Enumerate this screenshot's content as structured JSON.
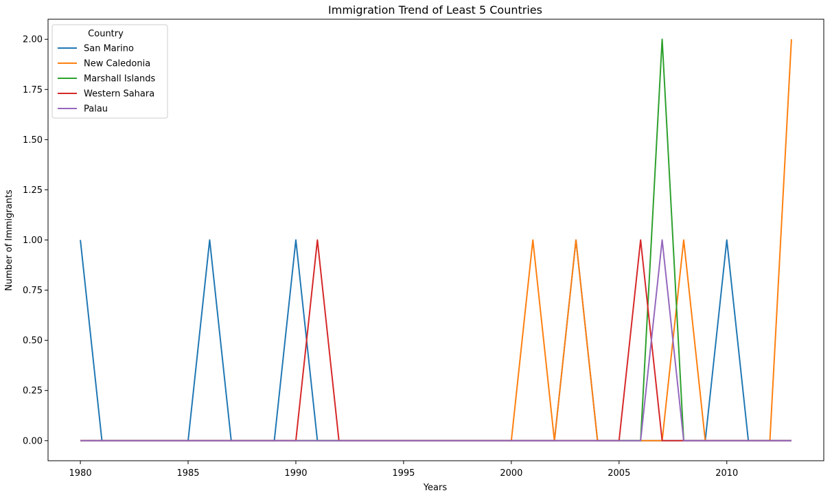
{
  "chart_data": {
    "type": "line",
    "title": "Immigration Trend of Least 5 Countries",
    "xlabel": "Years",
    "ylabel": "Number of Immigrants",
    "xlim": [
      1978.5,
      2014.5
    ],
    "ylim": [
      -0.1,
      2.1
    ],
    "xticks": [
      1980,
      1985,
      1990,
      1995,
      2000,
      2005,
      2010
    ],
    "yticks": [
      0.0,
      0.25,
      0.5,
      0.75,
      1.0,
      1.25,
      1.5,
      1.75,
      2.0
    ],
    "ytick_labels": [
      "0.00",
      "0.25",
      "0.50",
      "0.75",
      "1.00",
      "1.25",
      "1.50",
      "1.75",
      "2.00"
    ],
    "grid": false,
    "legend": {
      "title": "Country",
      "position": "top-left"
    },
    "x": [
      1980,
      1981,
      1982,
      1983,
      1984,
      1985,
      1986,
      1987,
      1988,
      1989,
      1990,
      1991,
      1992,
      1993,
      1994,
      1995,
      1996,
      1997,
      1998,
      1999,
      2000,
      2001,
      2002,
      2003,
      2004,
      2005,
      2006,
      2007,
      2008,
      2009,
      2010,
      2011,
      2012,
      2013
    ],
    "series": [
      {
        "name": "San Marino",
        "color": "#1f77b4",
        "values": [
          1,
          0,
          0,
          0,
          0,
          0,
          1,
          0,
          0,
          0,
          1,
          0,
          0,
          0,
          0,
          0,
          0,
          0,
          0,
          0,
          0,
          0,
          0,
          1,
          0,
          0,
          0,
          0,
          0,
          0,
          1,
          0,
          0,
          0
        ]
      },
      {
        "name": "New Caledonia",
        "color": "#ff7f0e",
        "values": [
          0,
          0,
          0,
          0,
          0,
          0,
          0,
          0,
          0,
          0,
          0,
          0,
          0,
          0,
          0,
          0,
          0,
          0,
          0,
          0,
          0,
          1,
          0,
          1,
          0,
          0,
          0,
          0,
          1,
          0,
          0,
          0,
          0,
          2
        ]
      },
      {
        "name": "Marshall Islands",
        "color": "#2ca02c",
        "values": [
          0,
          0,
          0,
          0,
          0,
          0,
          0,
          0,
          0,
          0,
          0,
          0,
          0,
          0,
          0,
          0,
          0,
          0,
          0,
          0,
          0,
          0,
          0,
          0,
          0,
          0,
          0,
          2,
          0,
          0,
          0,
          0,
          0,
          0
        ]
      },
      {
        "name": "Western Sahara",
        "color": "#d62728",
        "values": [
          0,
          0,
          0,
          0,
          0,
          0,
          0,
          0,
          0,
          0,
          0,
          1,
          0,
          0,
          0,
          0,
          0,
          0,
          0,
          0,
          0,
          0,
          0,
          0,
          0,
          0,
          1,
          0,
          0,
          0,
          0,
          0,
          0,
          0
        ]
      },
      {
        "name": "Palau",
        "color": "#9467bd",
        "values": [
          0,
          0,
          0,
          0,
          0,
          0,
          0,
          0,
          0,
          0,
          0,
          0,
          0,
          0,
          0,
          0,
          0,
          0,
          0,
          0,
          0,
          0,
          0,
          0,
          0,
          0,
          0,
          1,
          0,
          0,
          0,
          0,
          0,
          0
        ]
      }
    ]
  }
}
